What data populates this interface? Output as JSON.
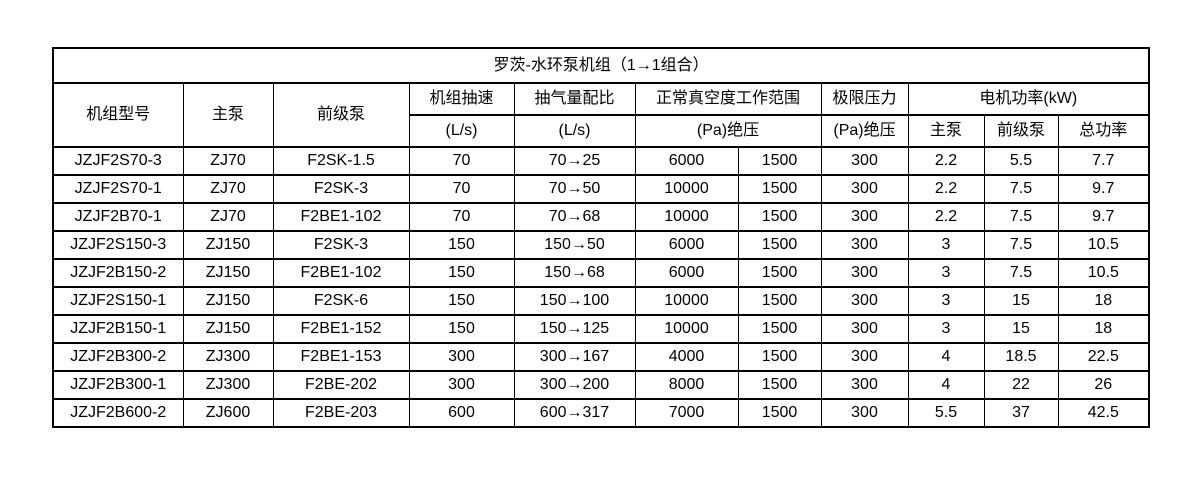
{
  "colors": {
    "background": "#ffffff",
    "text": "#000000",
    "border": "#000000"
  },
  "table": {
    "title": "罗茨-水环泵机组（1→1组合）",
    "header": {
      "unit_model": "机组型号",
      "main_pump": "主泵",
      "backing_pump": "前级泵",
      "unit_speed": "机组抽速",
      "unit_speed_unit": "(L/s)",
      "pumping_ratio": "抽气量配比",
      "pumping_ratio_unit": "(L/s)",
      "vacuum_range": "正常真空度工作范围",
      "vacuum_range_unit": "(Pa)绝压",
      "ultimate_pressure": "极限压力",
      "ultimate_pressure_unit": "(Pa)绝压",
      "motor_power": "电机功率(kW)",
      "motor_main_pump": "主泵",
      "motor_backing_pump": "前级泵",
      "motor_total": "总功率"
    },
    "rows": [
      [
        "JZJF2S70-3",
        "ZJ70",
        "F2SK-1.5",
        "70",
        "70→25",
        "6000",
        "1500",
        "300",
        "2.2",
        "5.5",
        "7.7"
      ],
      [
        "JZJF2S70-1",
        "ZJ70",
        "F2SK-3",
        "70",
        "70→50",
        "10000",
        "1500",
        "300",
        "2.2",
        "7.5",
        "9.7"
      ],
      [
        "JZJF2B70-1",
        "ZJ70",
        "F2BE1-102",
        "70",
        "70→68",
        "10000",
        "1500",
        "300",
        "2.2",
        "7.5",
        "9.7"
      ],
      [
        "JZJF2S150-3",
        "ZJ150",
        "F2SK-3",
        "150",
        "150→50",
        "6000",
        "1500",
        "300",
        "3",
        "7.5",
        "10.5"
      ],
      [
        "JZJF2B150-2",
        "ZJ150",
        "F2BE1-102",
        "150",
        "150→68",
        "6000",
        "1500",
        "300",
        "3",
        "7.5",
        "10.5"
      ],
      [
        "JZJF2S150-1",
        "ZJ150",
        "F2SK-6",
        "150",
        "150→100",
        "10000",
        "1500",
        "300",
        "3",
        "15",
        "18"
      ],
      [
        "JZJF2B150-1",
        "ZJ150",
        "F2BE1-152",
        "150",
        "150→125",
        "10000",
        "1500",
        "300",
        "3",
        "15",
        "18"
      ],
      [
        "JZJF2B300-2",
        "ZJ300",
        "F2BE1-153",
        "300",
        "300→167",
        "4000",
        "1500",
        "300",
        "4",
        "18.5",
        "22.5"
      ],
      [
        "JZJF2B300-1",
        "ZJ300",
        "F2BE-202",
        "300",
        "300→200",
        "8000",
        "1500",
        "300",
        "4",
        "22",
        "26"
      ],
      [
        "JZJF2B600-2",
        "ZJ600",
        "F2BE-203",
        "600",
        "600→317",
        "7000",
        "1500",
        "300",
        "5.5",
        "37",
        "42.5"
      ]
    ]
  }
}
